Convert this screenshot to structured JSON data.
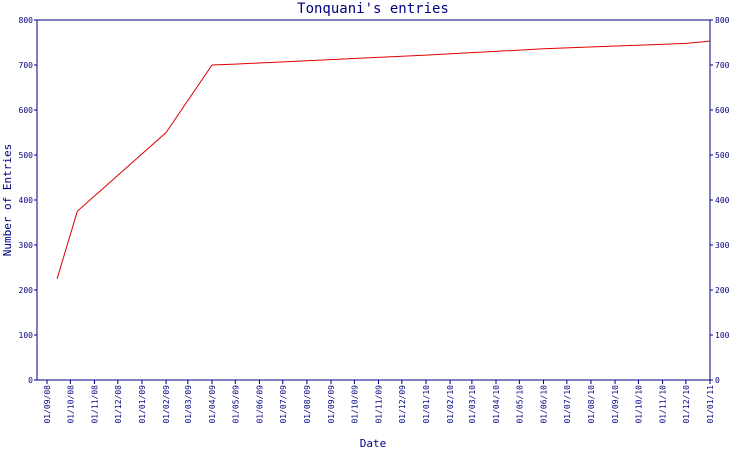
{
  "chart_data": {
    "type": "line",
    "title": "Tonquani's entries",
    "xlabel": "Date",
    "ylabel": "Number of Entries",
    "ylim": [
      0,
      800
    ],
    "y_ticks": [
      0,
      100,
      200,
      300,
      400,
      500,
      600,
      700,
      800
    ],
    "x_tick_labels": [
      "01/09/08",
      "01/10/08",
      "01/11/08",
      "01/12/08",
      "01/01/09",
      "01/02/09",
      "01/03/09",
      "01/04/09",
      "01/05/09",
      "01/06/09",
      "01/07/09",
      "01/08/09",
      "01/09/09",
      "01/10/09",
      "01/11/09",
      "01/12/09",
      "01/01/10",
      "01/02/10",
      "01/03/10",
      "01/04/10",
      "01/05/10",
      "01/06/10",
      "01/07/10",
      "01/08/10",
      "01/09/10",
      "01/10/10",
      "01/11/10",
      "01/12/10",
      "01/01/11"
    ],
    "series": [
      {
        "color": "#e00000",
        "x": [
          "2008-09-14",
          "2008-10-10",
          "2009-02-01",
          "2009-04-01",
          "2009-05-01",
          "2009-09-01",
          "2010-01-01",
          "2010-06-01",
          "2010-12-01",
          "2011-01-01"
        ],
        "values": [
          225,
          375,
          550,
          700,
          702,
          712,
          722,
          736,
          748,
          753
        ]
      }
    ],
    "right_axis_mirrors_left": true,
    "grid": false
  }
}
